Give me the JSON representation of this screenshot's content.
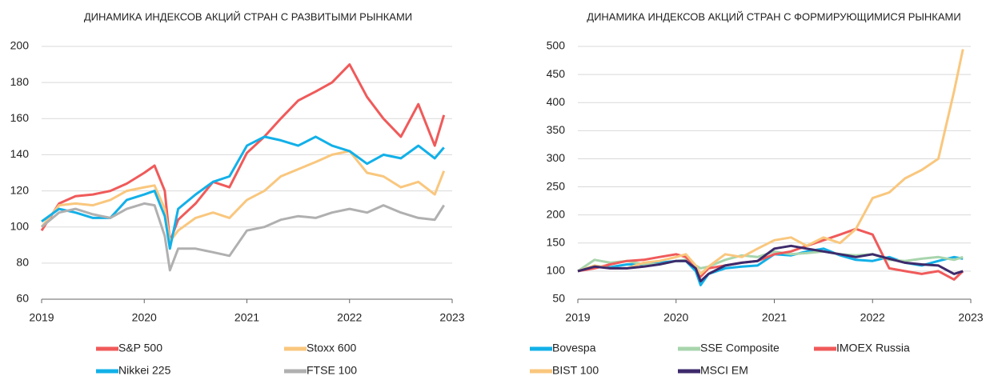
{
  "chart_data": [
    {
      "type": "line",
      "title": "ДИНАМИКА ИНДЕКСОВ АКЦИЙ СТРАН С РАЗВИТЫМИ РЫНКАМИ",
      "x": [
        2019.0,
        2019.17,
        2019.33,
        2019.5,
        2019.67,
        2019.83,
        2020.0,
        2020.1,
        2020.2,
        2020.25,
        2020.33,
        2020.5,
        2020.67,
        2020.83,
        2021.0,
        2021.17,
        2021.33,
        2021.5,
        2021.67,
        2021.83,
        2022.0,
        2022.17,
        2022.33,
        2022.5,
        2022.67,
        2022.83,
        2022.92
      ],
      "xlim": [
        2019,
        2023
      ],
      "xticks": [
        2019,
        2020,
        2021,
        2022,
        2023
      ],
      "ylim": [
        60,
        200
      ],
      "yticks": [
        60,
        80,
        100,
        120,
        140,
        160,
        180,
        200
      ],
      "grid": true,
      "series": [
        {
          "name": "S&P 500",
          "color": "#f05a5a",
          "values": [
            98,
            113,
            117,
            118,
            120,
            124,
            130,
            134,
            120,
            92,
            104,
            113,
            125,
            122,
            141,
            150,
            160,
            170,
            175,
            180,
            190,
            172,
            160,
            150,
            168,
            145,
            162
          ]
        },
        {
          "name": "Stoxx 600",
          "color": "#f9c77e",
          "values": [
            100,
            112,
            113,
            112,
            115,
            120,
            122,
            123,
            110,
            92,
            98,
            105,
            108,
            105,
            115,
            120,
            128,
            132,
            136,
            140,
            142,
            130,
            128,
            122,
            125,
            118,
            131
          ]
        },
        {
          "name": "Nikkei 225",
          "color": "#12b0e8",
          "values": [
            103,
            110,
            108,
            105,
            105,
            115,
            118,
            120,
            106,
            88,
            110,
            118,
            125,
            128,
            145,
            150,
            148,
            145,
            150,
            145,
            142,
            135,
            140,
            138,
            145,
            138,
            144
          ]
        },
        {
          "name": "FTSE 100",
          "color": "#b0b0b0",
          "values": [
            100,
            108,
            110,
            107,
            105,
            110,
            113,
            112,
            95,
            76,
            88,
            88,
            86,
            84,
            98,
            100,
            104,
            106,
            105,
            108,
            110,
            108,
            112,
            108,
            105,
            104,
            112
          ]
        }
      ]
    },
    {
      "type": "line",
      "title": "ДИНАМИКА ИНДЕКСОВ АКЦИЙ СТРАН С ФОРМИРУЮЩИМИСЯ РЫНКАМИ",
      "x": [
        2019.0,
        2019.17,
        2019.33,
        2019.5,
        2019.67,
        2019.83,
        2020.0,
        2020.1,
        2020.2,
        2020.25,
        2020.33,
        2020.5,
        2020.67,
        2020.83,
        2021.0,
        2021.17,
        2021.33,
        2021.5,
        2021.67,
        2021.83,
        2022.0,
        2022.17,
        2022.33,
        2022.5,
        2022.67,
        2022.83,
        2022.92
      ],
      "xlim": [
        2019,
        2023
      ],
      "xticks": [
        2019,
        2020,
        2021,
        2022,
        2023
      ],
      "ylim": [
        50,
        500
      ],
      "yticks": [
        50,
        100,
        150,
        200,
        250,
        300,
        350,
        400,
        450,
        500
      ],
      "grid": true,
      "series": [
        {
          "name": "Bovespa",
          "color": "#12b0e8",
          "values": [
            100,
            108,
            107,
            112,
            112,
            115,
            118,
            118,
            100,
            75,
            95,
            105,
            108,
            110,
            130,
            128,
            135,
            140,
            128,
            120,
            118,
            125,
            115,
            110,
            118,
            125,
            122
          ]
        },
        {
          "name": "SSE Composite",
          "color": "#a8d5ac",
          "values": [
            100,
            120,
            115,
            118,
            112,
            112,
            118,
            120,
            110,
            105,
            108,
            120,
            128,
            125,
            135,
            130,
            132,
            135,
            130,
            128,
            130,
            120,
            118,
            122,
            125,
            120,
            125
          ]
        },
        {
          "name": "IMOEX Russia",
          "color": "#f05a5a",
          "values": [
            100,
            105,
            112,
            118,
            120,
            125,
            130,
            125,
            108,
            90,
            105,
            110,
            115,
            118,
            130,
            135,
            145,
            155,
            165,
            175,
            165,
            105,
            100,
            95,
            100,
            85,
            100
          ]
        },
        {
          "name": "BIST 100",
          "color": "#f9c77e",
          "values": [
            100,
            110,
            105,
            105,
            115,
            118,
            125,
            130,
            110,
            95,
            108,
            130,
            125,
            140,
            155,
            160,
            145,
            160,
            150,
            175,
            230,
            240,
            265,
            280,
            300,
            420,
            495
          ]
        },
        {
          "name": "MSCI EM",
          "color": "#3d2a6b",
          "values": [
            100,
            108,
            105,
            105,
            108,
            112,
            118,
            118,
            105,
            82,
            95,
            110,
            115,
            118,
            140,
            145,
            140,
            135,
            130,
            125,
            130,
            122,
            115,
            112,
            110,
            95,
            100
          ]
        }
      ]
    }
  ]
}
